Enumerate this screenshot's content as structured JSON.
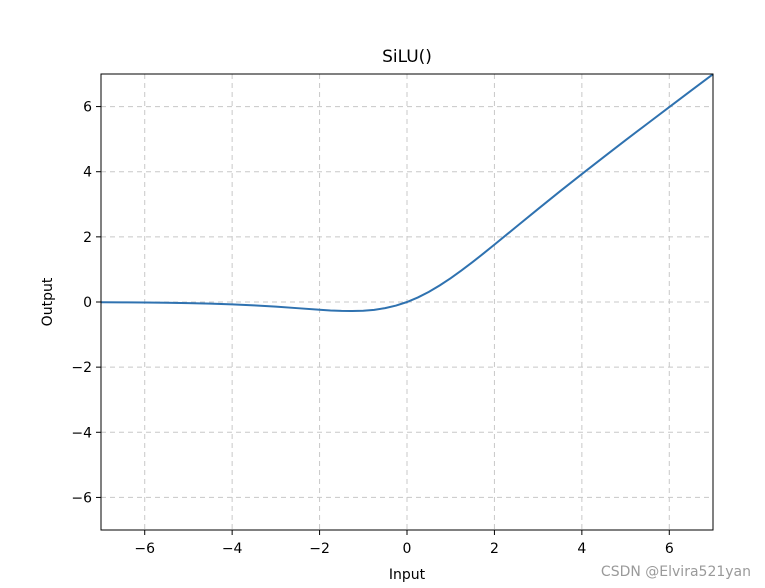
{
  "watermark": "CSDN @Elvira521yan",
  "chart_data": {
    "type": "line",
    "title": "SiLU()",
    "xlabel": "Input",
    "ylabel": "Output",
    "xlim": [
      -7,
      7
    ],
    "ylim": [
      -7,
      7
    ],
    "x_ticks": [
      -6,
      -4,
      -2,
      0,
      2,
      4,
      6
    ],
    "x_tick_labels": [
      "−6",
      "−4",
      "−2",
      "0",
      "2",
      "4",
      "6"
    ],
    "y_ticks": [
      -6,
      -4,
      -2,
      0,
      2,
      4,
      6
    ],
    "y_tick_labels": [
      "−6",
      "−4",
      "−2",
      "0",
      "2",
      "4",
      "6"
    ],
    "grid": true,
    "grid_style": "dashed",
    "line_color": "#2f72b0",
    "grid_color": "#c8c8c8",
    "series": [
      {
        "x": [
          -7,
          -6.5,
          -6,
          -5.5,
          -5,
          -4.5,
          -4,
          -3.5,
          -3,
          -2.5,
          -2,
          -1.75,
          -1.5,
          -1.28,
          -1.25,
          -1,
          -0.75,
          -0.5,
          -0.25,
          0,
          0.25,
          0.5,
          0.75,
          1,
          1.25,
          1.5,
          1.75,
          2,
          2.5,
          3,
          3.5,
          4,
          4.5,
          5,
          5.5,
          6,
          6.5,
          7
        ],
        "y": [
          -0.006,
          -0.01,
          -0.015,
          -0.022,
          -0.033,
          -0.049,
          -0.072,
          -0.103,
          -0.142,
          -0.19,
          -0.238,
          -0.26,
          -0.274,
          -0.278,
          -0.278,
          -0.269,
          -0.24,
          -0.189,
          -0.11,
          0.0,
          0.14,
          0.311,
          0.51,
          0.731,
          0.972,
          1.226,
          1.49,
          1.762,
          2.31,
          2.857,
          3.398,
          3.928,
          4.45,
          4.967,
          5.477,
          5.985,
          6.491,
          6.994
        ]
      }
    ]
  }
}
